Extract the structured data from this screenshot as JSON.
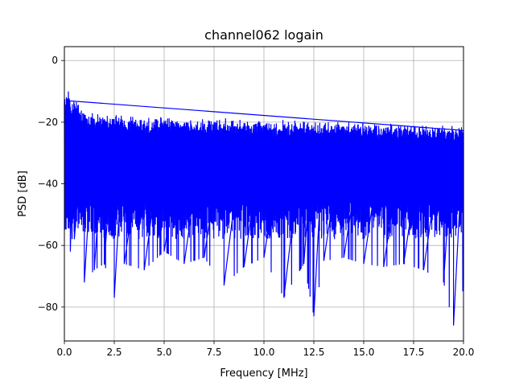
{
  "chart_data": {
    "type": "line",
    "title": "channel062 logain",
    "xlabel": "Frequency [MHz]",
    "ylabel": "PSD [dB]",
    "xlim": [
      0,
      20
    ],
    "ylim": [
      -91,
      4.5
    ],
    "xticks": [
      0.0,
      2.5,
      5.0,
      7.5,
      10.0,
      12.5,
      15.0,
      17.5,
      20.0
    ],
    "xtick_labels": [
      "0.0",
      "2.5",
      "5.0",
      "7.5",
      "10.0",
      "12.5",
      "15.0",
      "17.5",
      "20.0"
    ],
    "yticks": [
      0,
      -20,
      -40,
      -60,
      -80
    ],
    "ytick_labels": [
      "0",
      "−20",
      "−40",
      "−60",
      "−80"
    ],
    "grid": true,
    "series": [
      {
        "color": "#0000ff",
        "x": [
          0.1,
          0.2,
          0.3,
          0.5,
          1.0,
          1.5,
          2.0,
          2.5,
          3.0,
          4.0,
          5.0,
          6.0,
          7.0,
          8.0,
          9.0,
          10.0,
          11.0,
          12.0,
          12.5,
          13.0,
          14.0,
          15.0,
          16.0,
          17.0,
          18.0,
          19.0,
          19.5,
          20.0
        ],
        "upper": [
          -13,
          -10,
          -15,
          -14,
          -18,
          -19,
          -19,
          -19,
          -19.5,
          -20,
          -20,
          -20.5,
          -20.5,
          -20.5,
          -21,
          -21,
          -21,
          -21,
          -21.5,
          -21.5,
          -21.5,
          -22,
          -22,
          -22.5,
          -22.5,
          -23,
          -23,
          -23
        ],
        "lower": [
          -48,
          -50,
          -62,
          -58,
          -72,
          -68,
          -66,
          -77,
          -66,
          -68,
          -62,
          -66,
          -64,
          -73,
          -67,
          -64,
          -77,
          -66,
          -83,
          -65,
          -64,
          -66,
          -67,
          -66,
          -68,
          -72,
          -86,
          -74
        ]
      }
    ]
  }
}
